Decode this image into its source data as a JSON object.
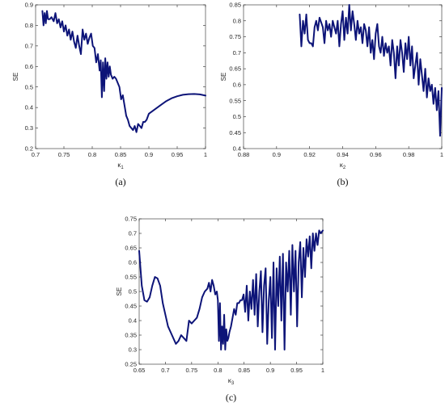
{
  "colors": {
    "line": "#0d1478",
    "axis": "#262626"
  },
  "chart_data": [
    {
      "type": "line",
      "ylabel": "SE",
      "xlabel": "κ1",
      "xlabel_base": "κ",
      "xlabel_sub": "1",
      "caption": "(a)",
      "xlim": [
        0.7,
        1
      ],
      "ylim": [
        0.2,
        0.9
      ],
      "xticks": [
        "0.7",
        "0.75",
        "0.8",
        "0.85",
        "0.9",
        "0.95",
        "1"
      ],
      "yticks": [
        "0.2",
        "0.3",
        "0.4",
        "0.5",
        "0.6",
        "0.7",
        "0.8",
        "0.9"
      ],
      "grid": false,
      "series": [
        {
          "x": [
            0.712,
            0.714,
            0.716,
            0.718,
            0.72,
            0.722,
            0.725,
            0.728,
            0.732,
            0.735,
            0.738,
            0.741,
            0.744,
            0.747,
            0.75,
            0.753,
            0.756,
            0.759,
            0.762,
            0.765,
            0.768,
            0.771,
            0.774,
            0.777,
            0.78,
            0.783,
            0.786,
            0.789,
            0.792,
            0.795,
            0.798,
            0.801,
            0.804,
            0.807,
            0.81,
            0.813,
            0.815,
            0.817,
            0.819,
            0.821,
            0.823,
            0.825,
            0.827,
            0.829,
            0.831,
            0.833,
            0.836,
            0.839,
            0.842,
            0.845,
            0.848,
            0.851,
            0.854,
            0.857,
            0.86,
            0.863,
            0.866,
            0.869,
            0.872,
            0.875,
            0.878,
            0.881,
            0.884,
            0.887,
            0.89,
            0.893,
            0.896,
            0.9,
            0.91,
            0.92,
            0.93,
            0.94,
            0.95,
            0.96,
            0.97,
            0.98,
            0.99,
            1.0
          ],
          "y": [
            0.87,
            0.8,
            0.86,
            0.81,
            0.87,
            0.83,
            0.83,
            0.84,
            0.82,
            0.86,
            0.81,
            0.83,
            0.79,
            0.82,
            0.77,
            0.8,
            0.75,
            0.78,
            0.73,
            0.77,
            0.72,
            0.69,
            0.75,
            0.7,
            0.66,
            0.78,
            0.73,
            0.76,
            0.71,
            0.74,
            0.76,
            0.7,
            0.69,
            0.62,
            0.66,
            0.58,
            0.63,
            0.45,
            0.62,
            0.48,
            0.64,
            0.54,
            0.62,
            0.55,
            0.6,
            0.56,
            0.54,
            0.55,
            0.54,
            0.52,
            0.5,
            0.44,
            0.46,
            0.41,
            0.36,
            0.34,
            0.31,
            0.3,
            0.29,
            0.31,
            0.28,
            0.32,
            0.31,
            0.3,
            0.33,
            0.33,
            0.34,
            0.37,
            0.39,
            0.41,
            0.43,
            0.445,
            0.455,
            0.462,
            0.465,
            0.466,
            0.464,
            0.458
          ]
        }
      ]
    },
    {
      "type": "line",
      "ylabel": "SE",
      "xlabel": "κ2",
      "xlabel_base": "κ",
      "xlabel_sub": "2",
      "caption": "(b)",
      "xlim": [
        0.88,
        1
      ],
      "ylim": [
        0.4,
        0.85
      ],
      "xticks": [
        "0.88",
        "0.9",
        "0.92",
        "0.94",
        "0.96",
        "0.98",
        "1"
      ],
      "yticks": [
        "0.4",
        "0.45",
        "0.5",
        "0.55",
        "0.6",
        "0.65",
        "0.7",
        "0.75",
        "0.8",
        "0.85"
      ],
      "grid": false,
      "series": [
        {
          "x": [
            0.914,
            0.915,
            0.916,
            0.917,
            0.918,
            0.919,
            0.92,
            0.921,
            0.922,
            0.923,
            0.924,
            0.925,
            0.926,
            0.928,
            0.929,
            0.93,
            0.931,
            0.932,
            0.933,
            0.934,
            0.935,
            0.936,
            0.937,
            0.938,
            0.939,
            0.94,
            0.941,
            0.942,
            0.943,
            0.944,
            0.945,
            0.946,
            0.947,
            0.948,
            0.949,
            0.95,
            0.951,
            0.952,
            0.953,
            0.954,
            0.955,
            0.956,
            0.957,
            0.958,
            0.959,
            0.96,
            0.961,
            0.962,
            0.963,
            0.964,
            0.965,
            0.966,
            0.967,
            0.968,
            0.969,
            0.97,
            0.971,
            0.972,
            0.973,
            0.974,
            0.975,
            0.976,
            0.977,
            0.978,
            0.979,
            0.98,
            0.981,
            0.982,
            0.983,
            0.984,
            0.985,
            0.986,
            0.987,
            0.988,
            0.989,
            0.99,
            0.991,
            0.992,
            0.993,
            0.994,
            0.995,
            0.996,
            0.997,
            0.998,
            0.999,
            1.0
          ],
          "y": [
            0.82,
            0.72,
            0.8,
            0.76,
            0.82,
            0.74,
            0.73,
            0.73,
            0.72,
            0.78,
            0.8,
            0.77,
            0.81,
            0.78,
            0.73,
            0.8,
            0.77,
            0.79,
            0.75,
            0.8,
            0.78,
            0.76,
            0.8,
            0.72,
            0.79,
            0.83,
            0.74,
            0.81,
            0.76,
            0.85,
            0.77,
            0.83,
            0.79,
            0.74,
            0.8,
            0.76,
            0.78,
            0.73,
            0.79,
            0.77,
            0.72,
            0.78,
            0.7,
            0.74,
            0.68,
            0.76,
            0.79,
            0.72,
            0.7,
            0.75,
            0.69,
            0.73,
            0.7,
            0.72,
            0.66,
            0.74,
            0.7,
            0.62,
            0.72,
            0.66,
            0.74,
            0.7,
            0.64,
            0.73,
            0.68,
            0.75,
            0.66,
            0.72,
            0.62,
            0.66,
            0.7,
            0.6,
            0.68,
            0.63,
            0.58,
            0.65,
            0.56,
            0.62,
            0.58,
            0.6,
            0.54,
            0.59,
            0.52,
            0.58,
            0.44,
            0.59
          ]
        }
      ]
    },
    {
      "type": "line",
      "ylabel": "SE",
      "xlabel": "κ3",
      "xlabel_base": "κ",
      "xlabel_sub": "3",
      "caption": "(c)",
      "xlim": [
        0.65,
        1
      ],
      "ylim": [
        0.25,
        0.75
      ],
      "xticks": [
        "0.65",
        "0.7",
        "0.75",
        "0.8",
        "0.85",
        "0.9",
        "0.95",
        "1"
      ],
      "yticks": [
        "0.25",
        "0.3",
        "0.35",
        "0.4",
        "0.45",
        "0.5",
        "0.55",
        "0.6",
        "0.65",
        "0.7",
        "0.75"
      ],
      "grid": false,
      "series": [
        {
          "x": [
            0.65,
            0.655,
            0.66,
            0.665,
            0.67,
            0.675,
            0.68,
            0.685,
            0.69,
            0.695,
            0.7,
            0.705,
            0.71,
            0.715,
            0.72,
            0.725,
            0.73,
            0.735,
            0.74,
            0.745,
            0.75,
            0.755,
            0.76,
            0.765,
            0.77,
            0.775,
            0.78,
            0.783,
            0.786,
            0.789,
            0.792,
            0.795,
            0.798,
            0.8,
            0.802,
            0.804,
            0.806,
            0.808,
            0.81,
            0.812,
            0.814,
            0.816,
            0.818,
            0.82,
            0.822,
            0.825,
            0.828,
            0.831,
            0.834,
            0.837,
            0.84,
            0.843,
            0.846,
            0.849,
            0.852,
            0.855,
            0.858,
            0.861,
            0.864,
            0.867,
            0.87,
            0.873,
            0.876,
            0.879,
            0.882,
            0.885,
            0.888,
            0.891,
            0.894,
            0.897,
            0.9,
            0.903,
            0.906,
            0.909,
            0.912,
            0.915,
            0.918,
            0.921,
            0.924,
            0.927,
            0.93,
            0.933,
            0.936,
            0.939,
            0.942,
            0.945,
            0.948,
            0.951,
            0.954,
            0.957,
            0.96,
            0.963,
            0.966,
            0.969,
            0.972,
            0.975,
            0.978,
            0.981,
            0.984,
            0.987,
            0.99,
            0.993,
            0.996,
            1.0
          ],
          "y": [
            0.64,
            0.52,
            0.47,
            0.465,
            0.48,
            0.52,
            0.55,
            0.545,
            0.52,
            0.46,
            0.42,
            0.38,
            0.36,
            0.34,
            0.32,
            0.33,
            0.35,
            0.34,
            0.33,
            0.4,
            0.39,
            0.4,
            0.41,
            0.44,
            0.48,
            0.5,
            0.51,
            0.53,
            0.5,
            0.54,
            0.52,
            0.49,
            0.5,
            0.47,
            0.33,
            0.46,
            0.3,
            0.38,
            0.32,
            0.42,
            0.3,
            0.37,
            0.33,
            0.34,
            0.36,
            0.38,
            0.41,
            0.44,
            0.42,
            0.46,
            0.46,
            0.47,
            0.47,
            0.49,
            0.43,
            0.52,
            0.4,
            0.5,
            0.44,
            0.54,
            0.42,
            0.56,
            0.38,
            0.5,
            0.57,
            0.36,
            0.52,
            0.58,
            0.32,
            0.47,
            0.55,
            0.34,
            0.6,
            0.3,
            0.58,
            0.45,
            0.62,
            0.4,
            0.63,
            0.3,
            0.6,
            0.5,
            0.64,
            0.42,
            0.66,
            0.5,
            0.64,
            0.38,
            0.6,
            0.67,
            0.48,
            0.65,
            0.55,
            0.68,
            0.62,
            0.69,
            0.58,
            0.7,
            0.64,
            0.7,
            0.66,
            0.71,
            0.7,
            0.71
          ]
        }
      ]
    }
  ]
}
